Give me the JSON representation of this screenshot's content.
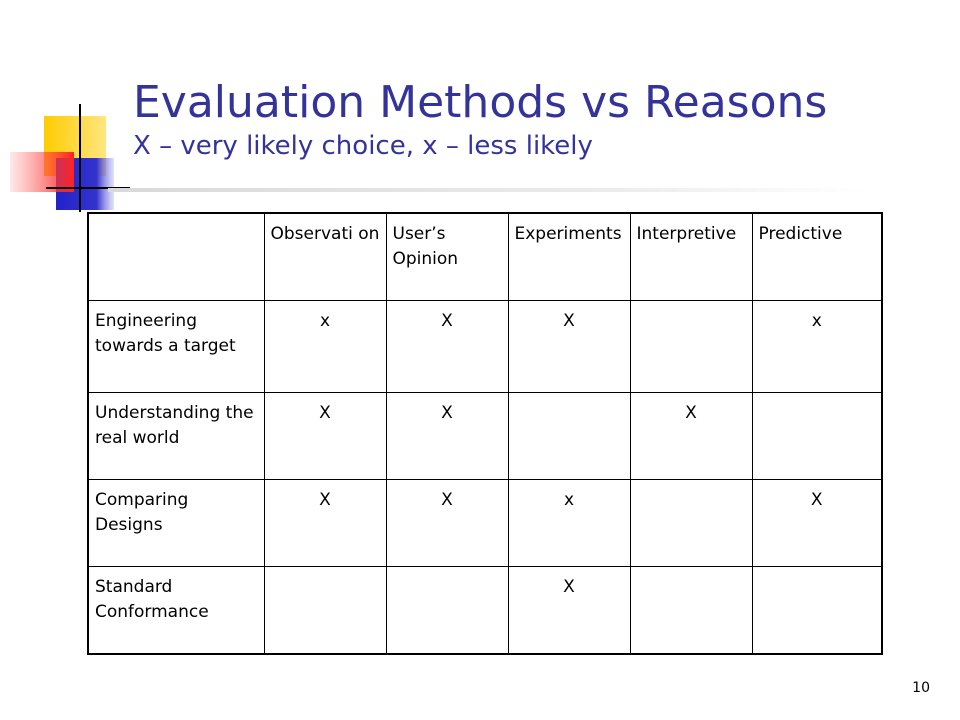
{
  "slide": {
    "title": "Evaluation Methods vs Reasons",
    "subtitle": "X – very likely choice, x – less likely",
    "page_number": "10"
  },
  "table": {
    "corner": "",
    "columns": [
      "Observati on",
      "User’s Opinion",
      "Experiments",
      "Interpretive",
      "Predictive"
    ],
    "rows": [
      {
        "label": "Engineering towards a target",
        "cells": [
          "x",
          "X",
          "X",
          "",
          "x"
        ]
      },
      {
        "label": "Understanding the real world",
        "cells": [
          "X",
          "X",
          "",
          "X",
          ""
        ]
      },
      {
        "label": "Comparing Designs",
        "cells": [
          "X",
          "X",
          "x",
          "",
          "X"
        ]
      },
      {
        "label": "Standard Conformance",
        "cells": [
          "",
          "",
          "X",
          "",
          ""
        ]
      }
    ]
  },
  "colors": {
    "title": "#333399",
    "logo_yellow": "#ffcc00",
    "logo_blue": "#3333cc",
    "logo_red": "#ff3333"
  },
  "icons": [
    "slide-template-logo-icon"
  ]
}
